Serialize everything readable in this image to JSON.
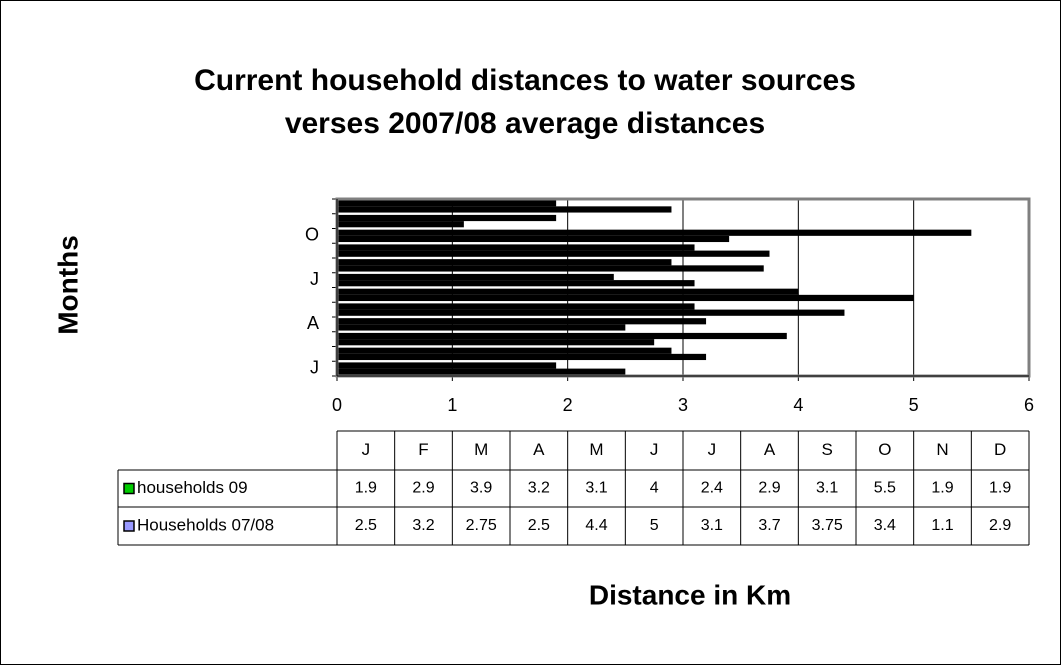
{
  "chart_data": {
    "type": "bar",
    "orientation": "horizontal",
    "title": [
      "Current household distances to water sources",
      "verses 2007/08 average distances"
    ],
    "y_label": "Months",
    "x_label": "Distance in Km",
    "categories": [
      "J",
      "F",
      "M",
      "A",
      "M",
      "J",
      "J",
      "A",
      "S",
      "O",
      "N",
      "D"
    ],
    "yticklabels": [
      "J",
      null,
      null,
      "A",
      null,
      null,
      "J",
      null,
      null,
      "O",
      null,
      null
    ],
    "series": [
      {
        "name": "households 09",
        "color": "#00cc00",
        "values": [
          1.9,
          2.9,
          3.9,
          3.2,
          3.1,
          4,
          2.4,
          2.9,
          3.1,
          5.5,
          1.9,
          1.9
        ]
      },
      {
        "name": "Households 07/08",
        "color": "#9999ff",
        "values": [
          2.5,
          3.2,
          2.75,
          2.5,
          4.4,
          5,
          3.1,
          3.7,
          3.75,
          3.4,
          1.1,
          2.9
        ]
      }
    ],
    "bar_color": "#000000",
    "xlim": [
      0,
      6
    ],
    "xticks": [
      0,
      1,
      2,
      3,
      4,
      5,
      6
    ],
    "grid": true,
    "data_table": true
  }
}
